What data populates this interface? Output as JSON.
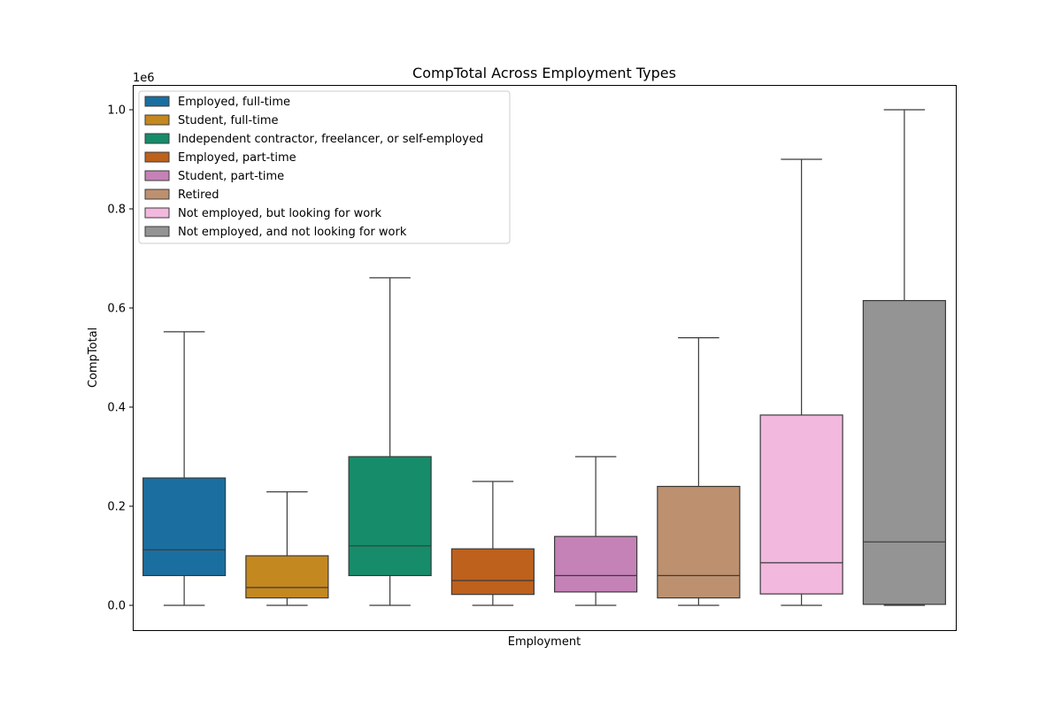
{
  "chart_data": {
    "type": "box",
    "title": "CompTotal Across Employment Types",
    "xlabel": "Employment",
    "ylabel": "CompTotal",
    "y_scale_label": "1e6",
    "ylim": [
      -50000,
      1050000
    ],
    "yticks": [
      0,
      200000,
      400000,
      600000,
      800000,
      1000000
    ],
    "ytick_labels": [
      "0.0",
      "0.2",
      "0.4",
      "0.6",
      "0.8",
      "1.0"
    ],
    "legend_position": "upper left",
    "series": [
      {
        "name": "Employed, full-time",
        "color": "#1a6fa0",
        "whisker_low": 0,
        "q1": 60000,
        "median": 112000,
        "q3": 257000,
        "whisker_high": 552000
      },
      {
        "name": "Student, full-time",
        "color": "#c48820",
        "whisker_low": 0,
        "q1": 15000,
        "median": 36000,
        "q3": 100000,
        "whisker_high": 229000
      },
      {
        "name": "Independent contractor, freelancer, or self-employed",
        "color": "#168c6a",
        "whisker_low": 0,
        "q1": 60000,
        "median": 120000,
        "q3": 300000,
        "whisker_high": 661000
      },
      {
        "name": "Employed, part-time",
        "color": "#bd611d",
        "whisker_low": 0,
        "q1": 22000,
        "median": 50000,
        "q3": 114000,
        "whisker_high": 250000
      },
      {
        "name": "Student, part-time",
        "color": "#c482b7",
        "whisker_low": 0,
        "q1": 27000,
        "median": 60000,
        "q3": 139000,
        "whisker_high": 300000
      },
      {
        "name": "Retired",
        "color": "#bd916f",
        "whisker_low": 0,
        "q1": 15000,
        "median": 60000,
        "q3": 240000,
        "whisker_high": 540000
      },
      {
        "name": "Not employed, but looking for work",
        "color": "#f2b8de",
        "whisker_low": 0,
        "q1": 23000,
        "median": 86000,
        "q3": 384000,
        "whisker_high": 900000
      },
      {
        "name": "Not employed, and not looking for work",
        "color": "#949494",
        "whisker_low": 0,
        "q1": 2000,
        "median": 128000,
        "q3": 615000,
        "whisker_high": 1000000
      }
    ]
  }
}
